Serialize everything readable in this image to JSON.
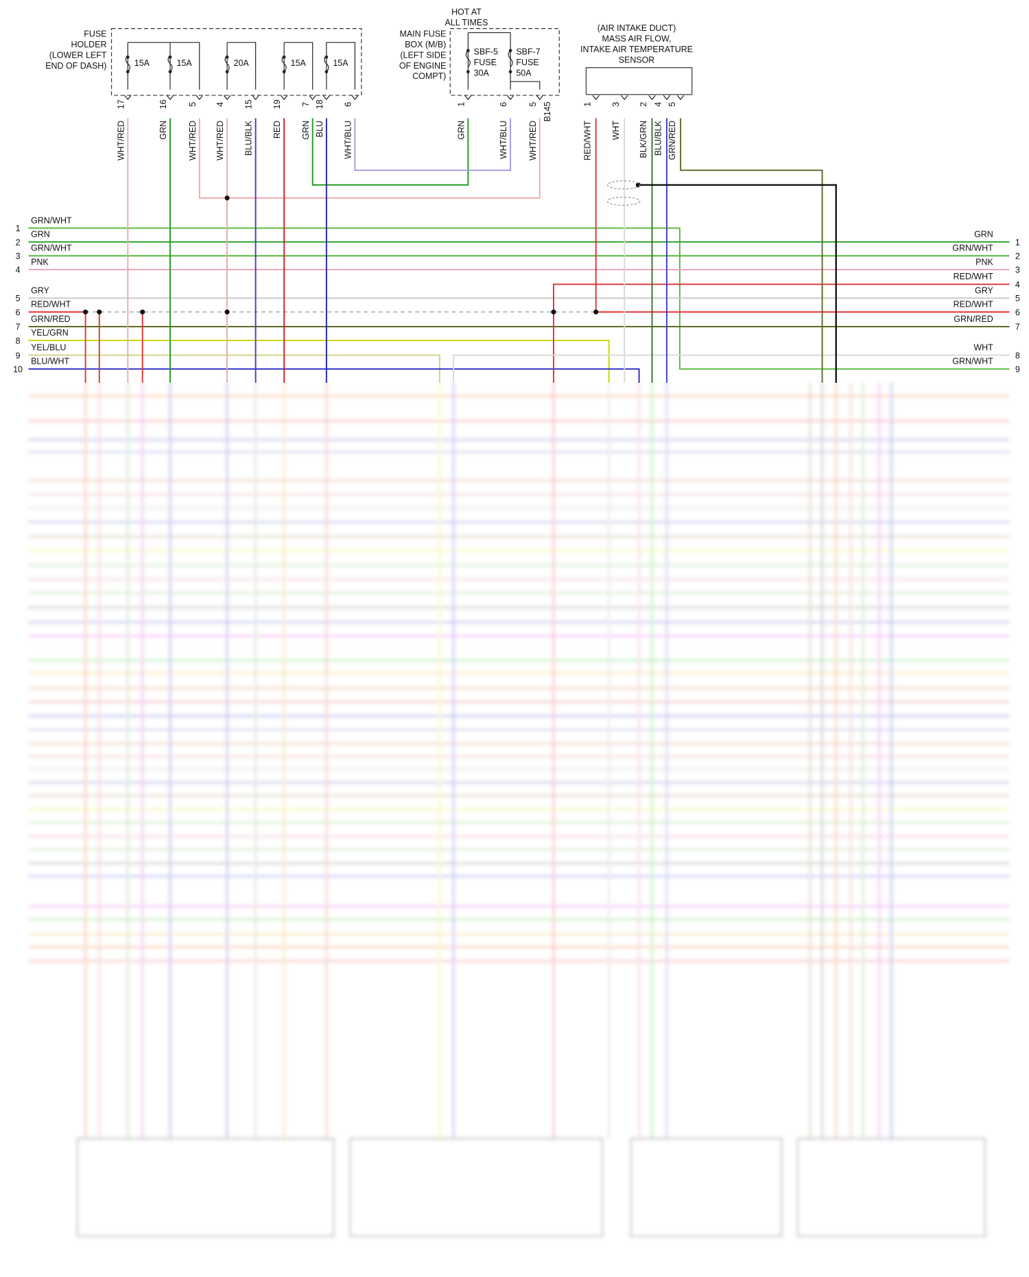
{
  "fuse_holder": {
    "label_lines": [
      "FUSE",
      "HOLDER",
      "(LOWER LEFT",
      "END OF DASH)"
    ],
    "fuses": [
      "15A",
      "15A",
      "20A",
      "15A",
      "15A"
    ],
    "pins": [
      {
        "number": "17",
        "wire": "WHT/RED"
      },
      {
        "number": "16",
        "wire": "GRN"
      },
      {
        "number": "5",
        "wire": "WHT/RED"
      },
      {
        "number": "4",
        "wire": "WHT/RED"
      },
      {
        "number": "15",
        "wire": "BLU/BLK"
      },
      {
        "number": "19",
        "wire": "RED"
      },
      {
        "number": "7",
        "wire": "GRN"
      },
      {
        "number": "18",
        "wire": "BLU"
      },
      {
        "number": "6",
        "wire": "WHT/BLU"
      }
    ]
  },
  "main_fuse_box": {
    "note_lines": [
      "HOT AT",
      "ALL TIMES"
    ],
    "label_lines": [
      "MAIN FUSE",
      "BOX (M/B)",
      "(LEFT SIDE",
      "OF ENGINE",
      "COMPT)"
    ],
    "fuses": [
      {
        "lines": [
          "SBF-5",
          "FUSE",
          "30A"
        ]
      },
      {
        "lines": [
          "SBF-7",
          "FUSE",
          "50A"
        ]
      }
    ],
    "pins": [
      {
        "number": "1",
        "wire": "GRN"
      },
      {
        "number": "6",
        "wire": "WHT/BLU"
      },
      {
        "number": "5",
        "wire": "WHT/RED"
      }
    ],
    "connector": "B145"
  },
  "sensor": {
    "label_lines": [
      "(AIR INTAKE DUCT)",
      "MASS AIR FLOW,",
      "INTAKE AIR TEMPERATURE",
      "SENSOR"
    ],
    "pins": [
      {
        "number": "1",
        "wire": "RED/WHT"
      },
      {
        "number": "3",
        "wire": "WHT"
      },
      {
        "number": "2",
        "wire": "BLK/GRN"
      },
      {
        "number": "4",
        "wire": "BLU/BLK"
      },
      {
        "number": "5",
        "wire": "GRN/RED"
      }
    ]
  },
  "left_rows": [
    {
      "number": "1",
      "wire": "GRN/WHT"
    },
    {
      "number": "2",
      "wire": "GRN"
    },
    {
      "number": "3",
      "wire": "GRN/WHT"
    },
    {
      "number": "4",
      "wire": "PNK"
    },
    {
      "number": "5",
      "wire": "GRY"
    },
    {
      "number": "6",
      "wire": "RED/WHT"
    },
    {
      "number": "7",
      "wire": "GRN/RED"
    },
    {
      "number": "8",
      "wire": "YEL/GRN"
    },
    {
      "number": "9",
      "wire": "YEL/BLU"
    },
    {
      "number": "10",
      "wire": "BLU/WHT"
    }
  ],
  "right_rows": [
    {
      "number": "1",
      "wire": "GRN"
    },
    {
      "number": "2",
      "wire": "GRN/WHT"
    },
    {
      "number": "3",
      "wire": "PNK"
    },
    {
      "number": "4",
      "wire": "RED/WHT"
    },
    {
      "number": "5",
      "wire": "GRY"
    },
    {
      "number": "6",
      "wire": "RED/WHT"
    },
    {
      "number": "7",
      "wire": "GRN/RED"
    },
    {
      "number": "8",
      "wire": "WHT"
    },
    {
      "number": "9",
      "wire": "GRN/WHT"
    }
  ]
}
